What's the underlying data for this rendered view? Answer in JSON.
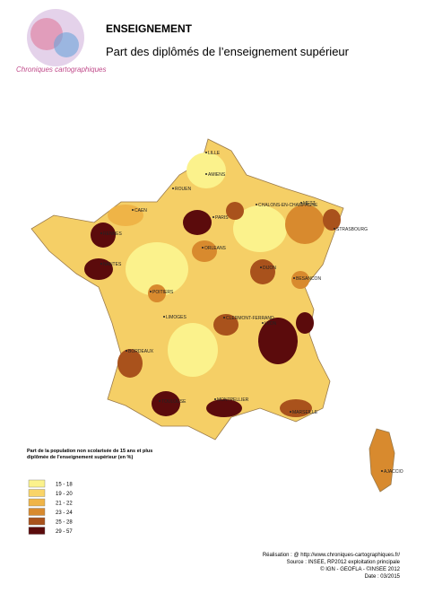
{
  "header": {
    "logo": "Chroniques cartographiques",
    "title": "ENSEIGNEMENT",
    "subtitle": "Part des diplômés de l’enseignement supérieur"
  },
  "cities": [
    "LILLE",
    "AMIENS",
    "ROUEN",
    "CAEN",
    "CHALONS-EN-CHAMPAGNE",
    "METZ",
    "STRASBOURG",
    "PARIS",
    "RENNES",
    "NANTES",
    "ORLEANS",
    "DIJON",
    "BESANCON",
    "POITIERS",
    "LIMOGES",
    "CLERMONT-FERRAND",
    "LYON",
    "BORDEAUX",
    "TOULOUSE",
    "MONTPELLIER",
    "MARSEILLE",
    "AJACCIO"
  ],
  "legend": {
    "title": "Part de la population non scolarisée de 15 ans et plus diplômée de l’enseignement supérieur (en %)",
    "items": [
      {
        "label": "15 - 18",
        "color": "#fbf28c"
      },
      {
        "label": "19 - 20",
        "color": "#f9d468"
      },
      {
        "label": "21 - 22",
        "color": "#efb447"
      },
      {
        "label": "23 - 24",
        "color": "#d88a2e"
      },
      {
        "label": "25 - 28",
        "color": "#a9521c"
      },
      {
        "label": "29 - 57",
        "color": "#5b0b0c"
      }
    ]
  },
  "credits": [
    "Réalisation : @ http://www.chroniques-cartographiques.fr/",
    "Source : INSEE, RP2012 exploitation principale",
    "© IGN - GEOFLA - ©INSEE 2012",
    "Date : 03/2015"
  ]
}
